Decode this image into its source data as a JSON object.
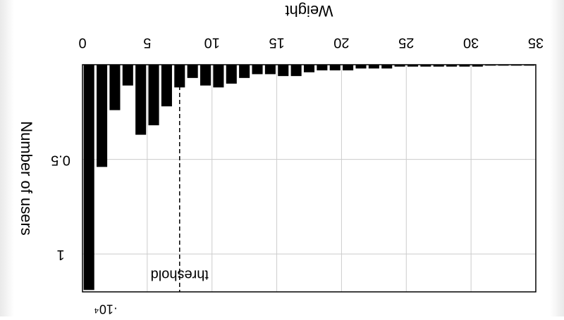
{
  "chart_data": {
    "type": "bar",
    "orientation": "mirrored-both-axes",
    "xlabel": "Weight",
    "ylabel": "Number of users",
    "xlim": [
      0,
      35
    ],
    "ylim": [
      0,
      1.2
    ],
    "y_multiplier_label": "·10⁴",
    "x_ticks": [
      "0",
      "5",
      "10",
      "15",
      "20",
      "25",
      "30",
      "35"
    ],
    "y_ticks": [
      "0.5",
      "1"
    ],
    "grid": true,
    "x": [
      1,
      2,
      3,
      4,
      5,
      6,
      7,
      8,
      9,
      10,
      11,
      12,
      13,
      14,
      15,
      16,
      17,
      18,
      19,
      20,
      21,
      22,
      23,
      24,
      25,
      26,
      27,
      28,
      29,
      30,
      31,
      32,
      33,
      34,
      35
    ],
    "values": [
      1.19,
      0.54,
      0.24,
      0.11,
      0.37,
      0.32,
      0.22,
      0.12,
      0.07,
      0.11,
      0.12,
      0.1,
      0.07,
      0.05,
      0.05,
      0.06,
      0.06,
      0.04,
      0.03,
      0.03,
      0.03,
      0.02,
      0.02,
      0.02,
      0.01,
      0.01,
      0.01,
      0.01,
      0.01,
      0.01,
      0.01,
      0.005,
      0.005,
      0.005,
      0.005
    ],
    "threshold": {
      "x": 7.5,
      "label": "threshold"
    },
    "colors": {
      "bar": "#000000",
      "grid": "#cccccc",
      "axis": "#000000"
    }
  }
}
